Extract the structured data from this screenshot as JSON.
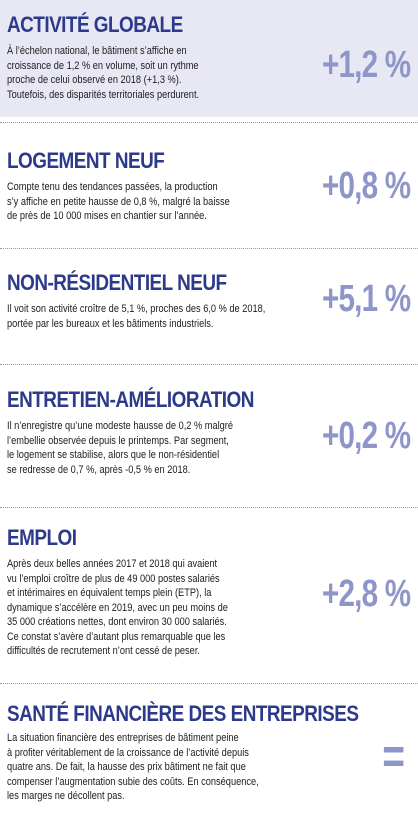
{
  "sections": [
    {
      "title": "ACTIVITÉ GLOBALE",
      "text": "À l’échelon national, le bâtiment s’affiche en\ncroissance de 1,2 % en volume, soit un rythme\nproche de celui observé en 2018 (+1,3 %).\nToutefois, des disparités territoriales perdurent.",
      "value": "+1,2 %"
    },
    {
      "title": "LOGEMENT NEUF",
      "text": "Compte tenu des tendances passées, la production\ns’y affiche en petite hausse de 0,8 %, malgré la baisse\nde près de 10 000 mises en chantier sur l’année.",
      "value": "+0,8 %"
    },
    {
      "title": "NON-RÉSIDENTIEL NEUF",
      "text": "Il voit son activité croître de 5,1 %, proches des 6,0 % de 2018,\nportée par les bureaux et les bâtiments industriels.",
      "value": "+5,1 %"
    },
    {
      "title": "ENTRETIEN-AMÉLIORATION",
      "text": "Il n’enregistre qu’une modeste hausse de 0,2 % malgré\nl’embellie observée depuis le printemps. Par segment,\nle logement se stabilise, alors que le non-résidentiel\nse redresse de 0,7 %, après -0,5 % en 2018.",
      "value": "+0,2 %"
    },
    {
      "title": "EMPLOI",
      "text": "Après deux belles années 2017 et 2018 qui avaient\nvu l’emploi croître de plus de 49 000 postes salariés\net intérimaires en équivalent temps plein (ETP), la\ndynamique s’accélère en 2019, avec un peu moins de\n35 000 créations nettes, dont environ 30 000 salariés.\nCe constat s’avère d’autant plus remarquable que les\ndifficultés de recrutement n’ont cessé de peser.",
      "value": "+2,8 %"
    },
    {
      "title": "SANTÉ FINANCIÈRE DES ENTREPRISES",
      "text": "La situation financière des entreprises de bâtiment peine\nà profiter véritablement de la croissance de l’activité depuis\nquatre ans. De fait, la hausse des prix bâtiment ne fait que\ncompenser l’augmentation subie des coûts. En conséquence,\nles marges ne décollent pas.",
      "value": "="
    }
  ]
}
